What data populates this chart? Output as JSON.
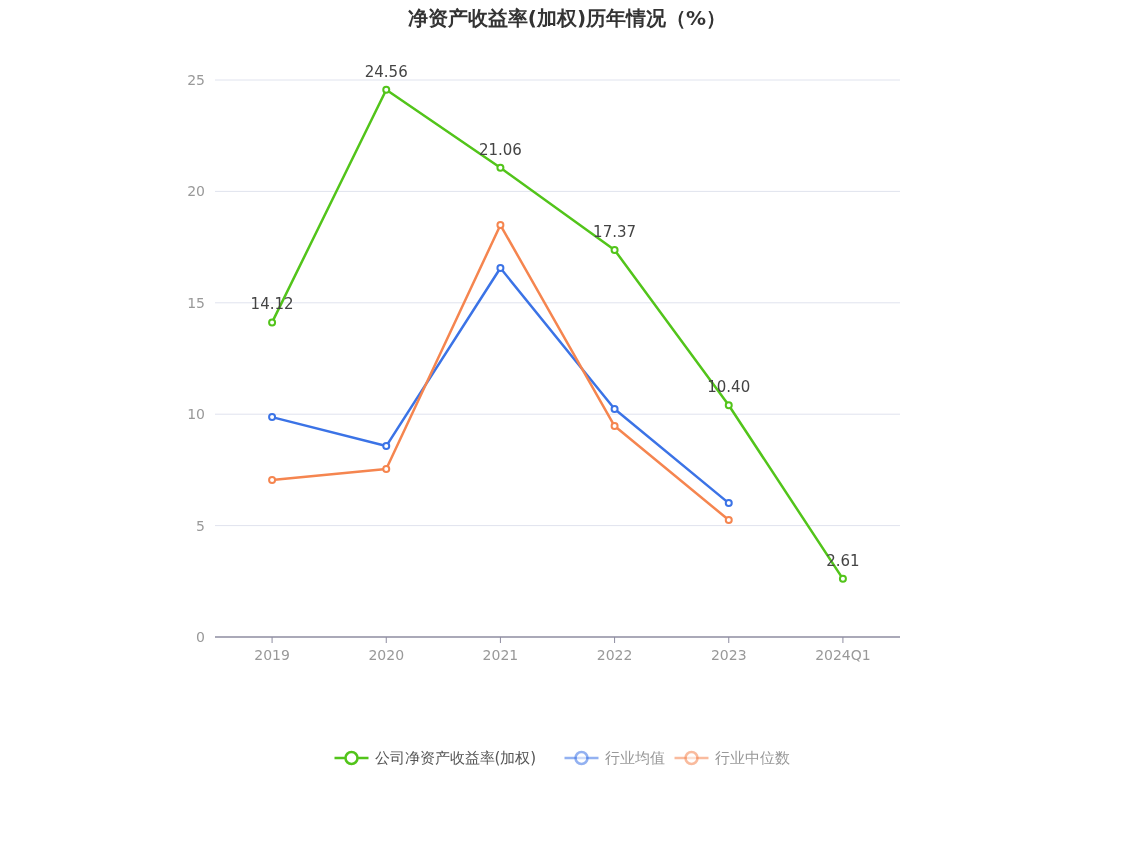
{
  "chart_data": {
    "type": "line",
    "title": "净资产收益率(加权)历年情况（%）",
    "categories": [
      "2019",
      "2020",
      "2021",
      "2022",
      "2023",
      "2024Q1"
    ],
    "series": [
      {
        "name": "公司净资产收益率(加权)",
        "color": "#52c41a",
        "values": [
          14.12,
          24.56,
          21.06,
          17.37,
          10.4,
          2.61
        ],
        "value_labels": [
          "14.12",
          "24.56",
          "21.06",
          "17.37",
          "10.40",
          "2.61"
        ]
      },
      {
        "name": "行业均值",
        "color": "#3b73e6",
        "values": [
          9.87,
          8.57,
          16.56,
          10.23,
          6.01,
          null
        ]
      },
      {
        "name": "行业中位数",
        "color": "#f5854f",
        "values": [
          7.05,
          7.54,
          18.49,
          9.47,
          5.25,
          null
        ]
      }
    ],
    "ylim": [
      0,
      25
    ],
    "yticks": [
      0,
      5,
      10,
      15,
      20,
      25
    ],
    "grid": "y",
    "legend": "bottom",
    "marker": "circle",
    "line_style": "solid"
  }
}
